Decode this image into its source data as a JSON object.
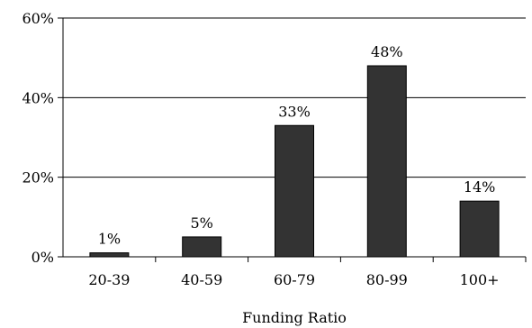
{
  "chart_data": {
    "type": "bar",
    "title": "",
    "xlabel": "Funding Ratio",
    "ylabel": "",
    "categories": [
      "20-39",
      "40-59",
      "60-79",
      "80-99",
      "100+"
    ],
    "values": [
      1,
      5,
      33,
      48,
      14
    ],
    "value_labels": [
      "1%",
      "5%",
      "33%",
      "48%",
      "14%"
    ],
    "ylim": [
      0,
      60
    ],
    "yticks": [
      0,
      20,
      40,
      60
    ],
    "ytick_labels": [
      "0%",
      "20%",
      "40%",
      "60%"
    ],
    "grid": true,
    "legend": "none",
    "bar_color": "#333333"
  }
}
